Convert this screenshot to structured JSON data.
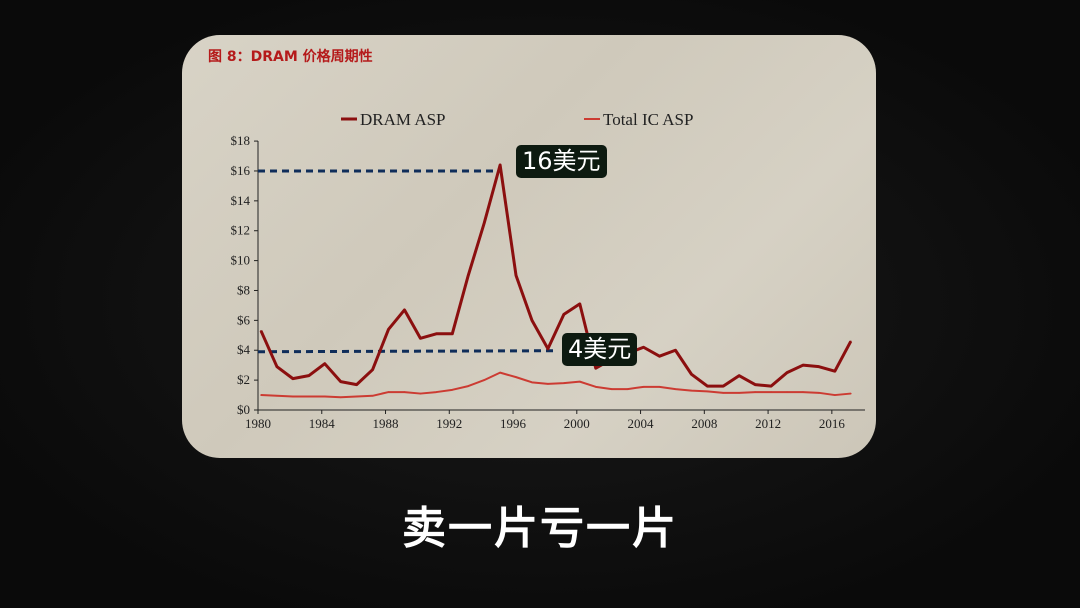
{
  "figure_title": "图 8：DRAM 价格周期性",
  "subtitle": "卖一片亏一片",
  "annotations": {
    "high": "16美元",
    "low": "4美元",
    "high_value": 16,
    "low_value": 3.9
  },
  "colors": {
    "dram": "#8b0f0f",
    "total_ic": "#cc3b32",
    "annotation_line": "#0f2d5a",
    "title": "#b51a1a"
  },
  "chart_data": {
    "type": "line",
    "title": "",
    "xlabel": "",
    "ylabel": "",
    "xlim": [
      1980,
      2017
    ],
    "ylim": [
      0,
      18
    ],
    "y_ticks": [
      "$0",
      "$2",
      "$4",
      "$6",
      "$8",
      "$10",
      "$12",
      "$14",
      "$16",
      "$18"
    ],
    "x_ticks": [
      "1980",
      "1984",
      "1988",
      "1992",
      "1996",
      "2000",
      "2004",
      "2008",
      "2012",
      "2016"
    ],
    "legend": "top",
    "grid": false,
    "x": [
      1980,
      1981,
      1982,
      1983,
      1984,
      1985,
      1986,
      1987,
      1988,
      1989,
      1990,
      1991,
      1992,
      1993,
      1994,
      1995,
      1996,
      1997,
      1998,
      1999,
      2000,
      2001,
      2002,
      2003,
      2004,
      2005,
      2006,
      2007,
      2008,
      2009,
      2010,
      2011,
      2012,
      2013,
      2014,
      2015,
      2016,
      2017
    ],
    "series": [
      {
        "name": "DRAM ASP",
        "values": [
          5.3,
          2.9,
          2.1,
          2.3,
          3.1,
          1.9,
          1.7,
          2.7,
          5.4,
          6.7,
          4.8,
          5.1,
          5.1,
          9.0,
          12.5,
          16.4,
          9.0,
          6.0,
          4.1,
          6.4,
          7.1,
          2.8,
          3.4,
          3.8,
          4.2,
          3.6,
          4.0,
          2.4,
          1.6,
          1.6,
          2.3,
          1.7,
          1.6,
          2.5,
          3.0,
          2.9,
          2.6,
          4.6
        ]
      },
      {
        "name": "Total IC ASP",
        "values": [
          1.0,
          0.95,
          0.9,
          0.9,
          0.9,
          0.85,
          0.9,
          0.95,
          1.2,
          1.2,
          1.1,
          1.2,
          1.35,
          1.6,
          2.0,
          2.5,
          2.2,
          1.85,
          1.75,
          1.8,
          1.9,
          1.55,
          1.4,
          1.4,
          1.55,
          1.55,
          1.4,
          1.3,
          1.25,
          1.15,
          1.15,
          1.2,
          1.2,
          1.2,
          1.2,
          1.15,
          1.0,
          1.1
        ]
      }
    ]
  }
}
